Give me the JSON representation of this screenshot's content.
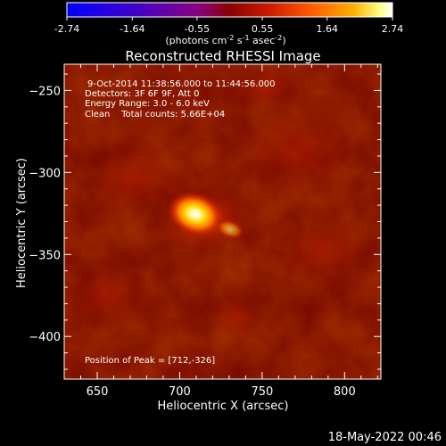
{
  "colorbar": {
    "ticks": [
      "-2.74",
      "-1.64",
      "-0.55",
      "0.55",
      "1.64",
      "2.74"
    ],
    "tick_values": [
      -2.74,
      -1.64,
      -0.55,
      0.55,
      1.64,
      2.74
    ],
    "range": [
      -2.74,
      2.74
    ],
    "units_main": "(photons cm",
    "units_exp1": "-2",
    "units_mid": " s",
    "units_exp2": "-1",
    "units_end": " asec",
    "units_exp3": "-2",
    "units_close": ")"
  },
  "title": "Reconstructed RHESSI Image",
  "info": {
    "time_range": "9-Oct-2014 11:38:56.000 to 11:44:56.000",
    "detectors": "Detectors: 3F 6F 9F, Att 0",
    "energy": "Energy Range: 3.0 - 6.0 keV",
    "clean": "Clean    Total counts: 5.66E+04",
    "peak": "Position of Peak = [712,-326]"
  },
  "timestamp": "18-May-2022 00:46",
  "chart_data": {
    "type": "heatmap",
    "title": "Reconstructed RHESSI Image",
    "xlabel": "Heliocentric X (arcsec)",
    "ylabel": "Heliocentric Y (arcsec)",
    "xlim": [
      630,
      822
    ],
    "ylim": [
      -426,
      -234
    ],
    "x_ticks": [
      650,
      700,
      750,
      800
    ],
    "x_tick_labels": [
      "650",
      "700",
      "750",
      "800"
    ],
    "y_ticks": [
      -250,
      -300,
      -350,
      -400
    ],
    "y_tick_labels": [
      "−250",
      "−300",
      "−350",
      "−400"
    ],
    "colormap": "red temperature",
    "peak": {
      "x": 712,
      "y": -326
    }
  }
}
